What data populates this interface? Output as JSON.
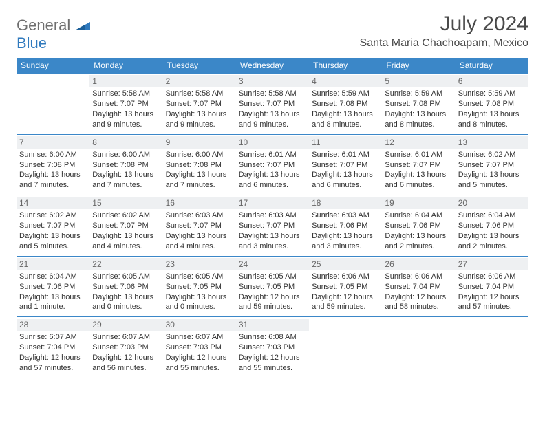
{
  "brand": {
    "part1": "General",
    "part2": "Blue"
  },
  "title": "July 2024",
  "location": "Santa Maria Chachoapam, Mexico",
  "colors": {
    "header_bg": "#3b87c8",
    "header_text": "#ffffff",
    "border": "#3b87c8",
    "daynum_bg": "#eef0f2",
    "daynum_text": "#666666",
    "body_text": "#333333",
    "brand_gray": "#6f6f6f",
    "brand_blue": "#2f79bd"
  },
  "weekdays": [
    "Sunday",
    "Monday",
    "Tuesday",
    "Wednesday",
    "Thursday",
    "Friday",
    "Saturday"
  ],
  "weeks": [
    [
      {
        "n": "",
        "sr": "",
        "ss": "",
        "dl": ""
      },
      {
        "n": "1",
        "sr": "Sunrise: 5:58 AM",
        "ss": "Sunset: 7:07 PM",
        "dl": "Daylight: 13 hours and 9 minutes."
      },
      {
        "n": "2",
        "sr": "Sunrise: 5:58 AM",
        "ss": "Sunset: 7:07 PM",
        "dl": "Daylight: 13 hours and 9 minutes."
      },
      {
        "n": "3",
        "sr": "Sunrise: 5:58 AM",
        "ss": "Sunset: 7:07 PM",
        "dl": "Daylight: 13 hours and 9 minutes."
      },
      {
        "n": "4",
        "sr": "Sunrise: 5:59 AM",
        "ss": "Sunset: 7:08 PM",
        "dl": "Daylight: 13 hours and 8 minutes."
      },
      {
        "n": "5",
        "sr": "Sunrise: 5:59 AM",
        "ss": "Sunset: 7:08 PM",
        "dl": "Daylight: 13 hours and 8 minutes."
      },
      {
        "n": "6",
        "sr": "Sunrise: 5:59 AM",
        "ss": "Sunset: 7:08 PM",
        "dl": "Daylight: 13 hours and 8 minutes."
      }
    ],
    [
      {
        "n": "7",
        "sr": "Sunrise: 6:00 AM",
        "ss": "Sunset: 7:08 PM",
        "dl": "Daylight: 13 hours and 7 minutes."
      },
      {
        "n": "8",
        "sr": "Sunrise: 6:00 AM",
        "ss": "Sunset: 7:08 PM",
        "dl": "Daylight: 13 hours and 7 minutes."
      },
      {
        "n": "9",
        "sr": "Sunrise: 6:00 AM",
        "ss": "Sunset: 7:08 PM",
        "dl": "Daylight: 13 hours and 7 minutes."
      },
      {
        "n": "10",
        "sr": "Sunrise: 6:01 AM",
        "ss": "Sunset: 7:07 PM",
        "dl": "Daylight: 13 hours and 6 minutes."
      },
      {
        "n": "11",
        "sr": "Sunrise: 6:01 AM",
        "ss": "Sunset: 7:07 PM",
        "dl": "Daylight: 13 hours and 6 minutes."
      },
      {
        "n": "12",
        "sr": "Sunrise: 6:01 AM",
        "ss": "Sunset: 7:07 PM",
        "dl": "Daylight: 13 hours and 6 minutes."
      },
      {
        "n": "13",
        "sr": "Sunrise: 6:02 AM",
        "ss": "Sunset: 7:07 PM",
        "dl": "Daylight: 13 hours and 5 minutes."
      }
    ],
    [
      {
        "n": "14",
        "sr": "Sunrise: 6:02 AM",
        "ss": "Sunset: 7:07 PM",
        "dl": "Daylight: 13 hours and 5 minutes."
      },
      {
        "n": "15",
        "sr": "Sunrise: 6:02 AM",
        "ss": "Sunset: 7:07 PM",
        "dl": "Daylight: 13 hours and 4 minutes."
      },
      {
        "n": "16",
        "sr": "Sunrise: 6:03 AM",
        "ss": "Sunset: 7:07 PM",
        "dl": "Daylight: 13 hours and 4 minutes."
      },
      {
        "n": "17",
        "sr": "Sunrise: 6:03 AM",
        "ss": "Sunset: 7:07 PM",
        "dl": "Daylight: 13 hours and 3 minutes."
      },
      {
        "n": "18",
        "sr": "Sunrise: 6:03 AM",
        "ss": "Sunset: 7:06 PM",
        "dl": "Daylight: 13 hours and 3 minutes."
      },
      {
        "n": "19",
        "sr": "Sunrise: 6:04 AM",
        "ss": "Sunset: 7:06 PM",
        "dl": "Daylight: 13 hours and 2 minutes."
      },
      {
        "n": "20",
        "sr": "Sunrise: 6:04 AM",
        "ss": "Sunset: 7:06 PM",
        "dl": "Daylight: 13 hours and 2 minutes."
      }
    ],
    [
      {
        "n": "21",
        "sr": "Sunrise: 6:04 AM",
        "ss": "Sunset: 7:06 PM",
        "dl": "Daylight: 13 hours and 1 minute."
      },
      {
        "n": "22",
        "sr": "Sunrise: 6:05 AM",
        "ss": "Sunset: 7:06 PM",
        "dl": "Daylight: 13 hours and 0 minutes."
      },
      {
        "n": "23",
        "sr": "Sunrise: 6:05 AM",
        "ss": "Sunset: 7:05 PM",
        "dl": "Daylight: 13 hours and 0 minutes."
      },
      {
        "n": "24",
        "sr": "Sunrise: 6:05 AM",
        "ss": "Sunset: 7:05 PM",
        "dl": "Daylight: 12 hours and 59 minutes."
      },
      {
        "n": "25",
        "sr": "Sunrise: 6:06 AM",
        "ss": "Sunset: 7:05 PM",
        "dl": "Daylight: 12 hours and 59 minutes."
      },
      {
        "n": "26",
        "sr": "Sunrise: 6:06 AM",
        "ss": "Sunset: 7:04 PM",
        "dl": "Daylight: 12 hours and 58 minutes."
      },
      {
        "n": "27",
        "sr": "Sunrise: 6:06 AM",
        "ss": "Sunset: 7:04 PM",
        "dl": "Daylight: 12 hours and 57 minutes."
      }
    ],
    [
      {
        "n": "28",
        "sr": "Sunrise: 6:07 AM",
        "ss": "Sunset: 7:04 PM",
        "dl": "Daylight: 12 hours and 57 minutes."
      },
      {
        "n": "29",
        "sr": "Sunrise: 6:07 AM",
        "ss": "Sunset: 7:03 PM",
        "dl": "Daylight: 12 hours and 56 minutes."
      },
      {
        "n": "30",
        "sr": "Sunrise: 6:07 AM",
        "ss": "Sunset: 7:03 PM",
        "dl": "Daylight: 12 hours and 55 minutes."
      },
      {
        "n": "31",
        "sr": "Sunrise: 6:08 AM",
        "ss": "Sunset: 7:03 PM",
        "dl": "Daylight: 12 hours and 55 minutes."
      },
      {
        "n": "",
        "sr": "",
        "ss": "",
        "dl": ""
      },
      {
        "n": "",
        "sr": "",
        "ss": "",
        "dl": ""
      },
      {
        "n": "",
        "sr": "",
        "ss": "",
        "dl": ""
      }
    ]
  ]
}
